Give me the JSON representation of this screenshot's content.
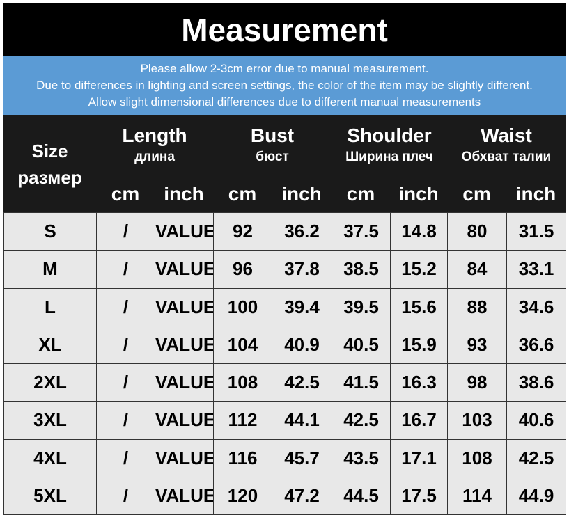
{
  "header": {
    "title": "Measurement"
  },
  "notice": {
    "lines": [
      "Please allow 2-3cm error due to manual measurement.",
      "Due to differences in lighting and screen settings, the color of the item may be slightly different.",
      "Allow slight dimensional differences due to different manual measurements"
    ]
  },
  "table": {
    "size_header": {
      "label": "Size",
      "sublabel": "размер"
    },
    "groups": [
      {
        "label": "Length",
        "sublabel": "длина",
        "units": [
          "cm",
          "inch"
        ]
      },
      {
        "label": "Bust",
        "sublabel": "бюст",
        "units": [
          "cm",
          "inch"
        ]
      },
      {
        "label": "Shoulder",
        "sublabel": "Ширина плеч",
        "units": [
          "cm",
          "inch"
        ]
      },
      {
        "label": "Waist",
        "sublabel": "Обхват талии",
        "units": [
          "cm",
          "inch"
        ]
      }
    ],
    "rows": [
      [
        "S",
        "/",
        "VALUE",
        "92",
        "36.2",
        "37.5",
        "14.8",
        "80",
        "31.5"
      ],
      [
        "M",
        "/",
        "VALUE",
        "96",
        "37.8",
        "38.5",
        "15.2",
        "84",
        "33.1"
      ],
      [
        "L",
        "/",
        "VALUE",
        "100",
        "39.4",
        "39.5",
        "15.6",
        "88",
        "34.6"
      ],
      [
        "XL",
        "/",
        "VALUE",
        "104",
        "40.9",
        "40.5",
        "15.9",
        "93",
        "36.6"
      ],
      [
        "2XL",
        "/",
        "VALUE",
        "108",
        "42.5",
        "41.5",
        "16.3",
        "98",
        "38.6"
      ],
      [
        "3XL",
        "/",
        "VALUE",
        "112",
        "44.1",
        "42.5",
        "16.7",
        "103",
        "40.6"
      ],
      [
        "4XL",
        "/",
        "VALUE",
        "116",
        "45.7",
        "43.5",
        "17.1",
        "108",
        "42.5"
      ],
      [
        "5XL",
        "/",
        "VALUE",
        "120",
        "47.2",
        "44.5",
        "17.5",
        "114",
        "44.9"
      ]
    ]
  }
}
